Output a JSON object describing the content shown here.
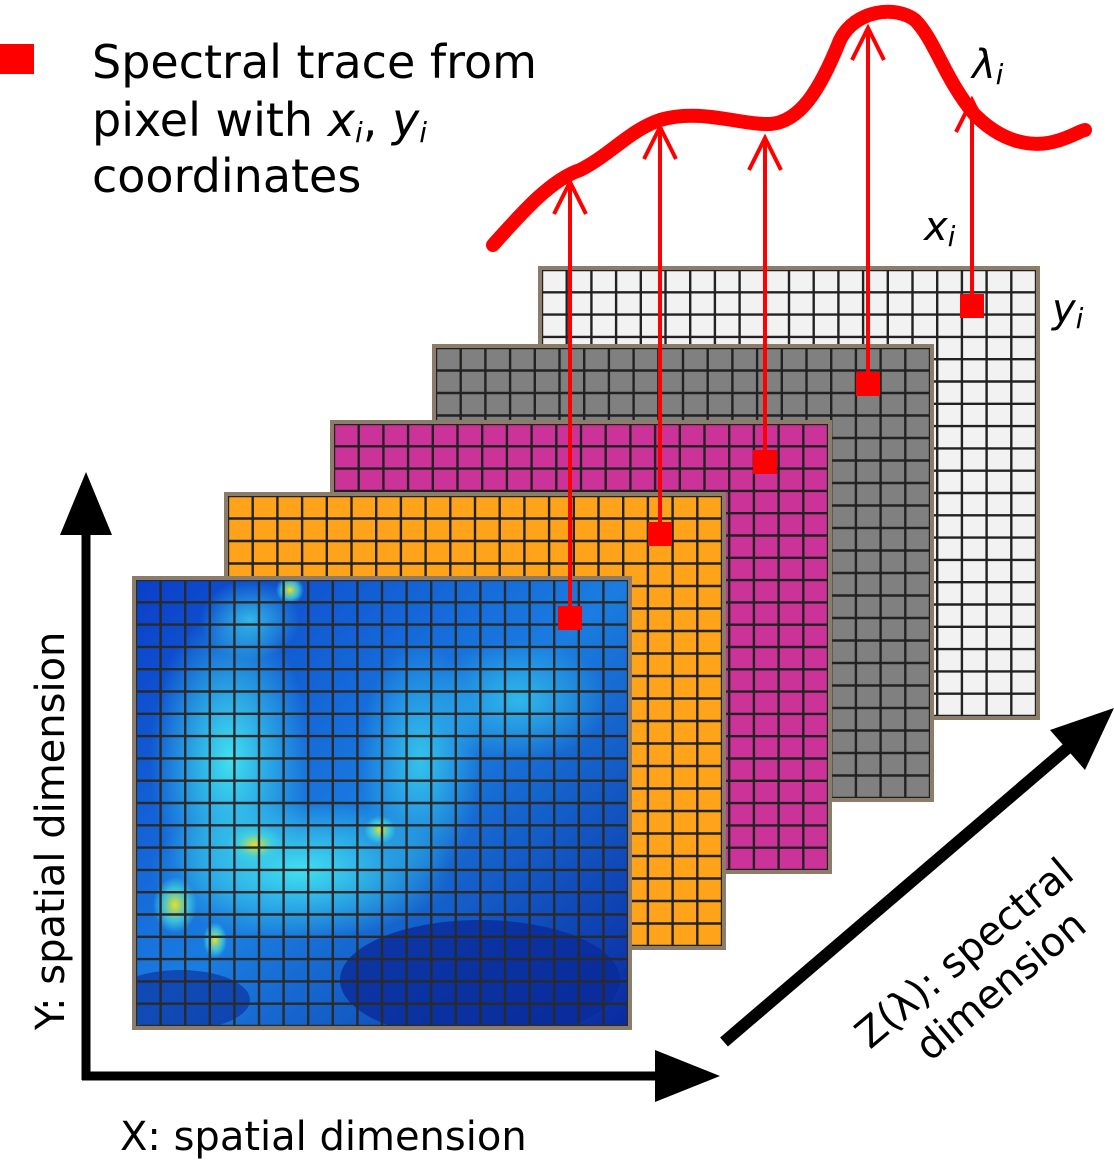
{
  "legend": {
    "marker_color": "#ff0000",
    "line1": "Spectral trace from",
    "line2_prefix": "pixel with ",
    "line2_x": "x",
    "line2_x_sub": "i",
    "line2_sep": ", ",
    "line2_y": "y",
    "line2_y_sub": "i",
    "line3": "coordinates"
  },
  "axes": {
    "x_label": "X: spatial dimension",
    "y_label": "Y: spatial dimension",
    "z_label_line1": "Z(λ): spectral",
    "z_label_line2": "dimension"
  },
  "coords": {
    "lambda": "λ",
    "lambda_sub": "i",
    "x": "x",
    "x_sub": "i",
    "y": "y",
    "y_sub": "i"
  },
  "layers": [
    {
      "name": "white-band",
      "color": "#f2f2f2"
    },
    {
      "name": "gray-band",
      "color": "#808080"
    },
    {
      "name": "magenta-band",
      "color": "#cc3399"
    },
    {
      "name": "orange-band",
      "color": "#ffa31a"
    },
    {
      "name": "image-band",
      "color": "#1a6fd6"
    }
  ],
  "colors": {
    "trace": "#ff0000",
    "grid": "#222222",
    "frame": "#8c7d6a"
  }
}
